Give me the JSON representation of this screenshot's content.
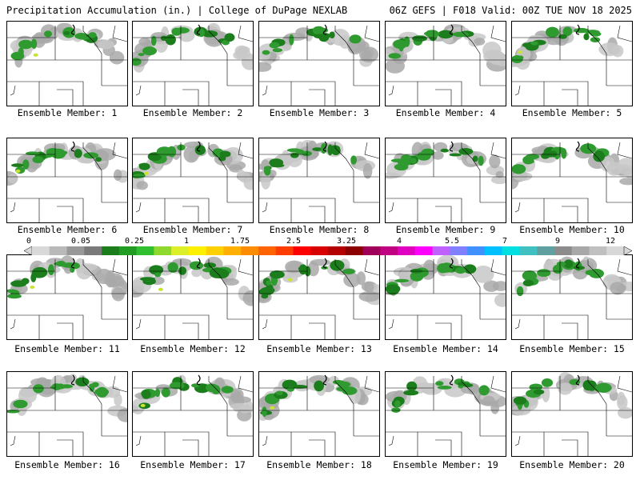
{
  "header": {
    "left": "Precipitation Accumulation (in.) | College of DuPage NEXLAB",
    "right": "06Z GEFS | F018 Valid: 00Z TUE NOV 18 2025"
  },
  "colorbar": {
    "ticks": [
      "0",
      "0.05",
      "0.25",
      "1",
      "1.75",
      "2.5",
      "3.25",
      "4",
      "5.5",
      "7",
      "9",
      "12"
    ],
    "colors": [
      "#d9d9d9",
      "#b9b9b9",
      "#989898",
      "#7a7a7a",
      "#1b7d1b",
      "#239c23",
      "#2fbf2f",
      "#8fd82d",
      "#dcef28",
      "#fff000",
      "#ffd000",
      "#ffb000",
      "#ff8c00",
      "#ff6400",
      "#ff3c00",
      "#ff0000",
      "#d80000",
      "#b40000",
      "#8c0000",
      "#a0005a",
      "#c00080",
      "#e000c0",
      "#ff00ff",
      "#c060ff",
      "#8080ff",
      "#4090ff",
      "#00c0ff",
      "#00e0e0",
      "#40c0c0",
      "#60a0a0",
      "#8c8c8c",
      "#a8a8a8",
      "#c0c0c0",
      "#d8d8d8"
    ]
  },
  "panels": [
    {
      "label": "Ensemble Member: 1"
    },
    {
      "label": "Ensemble Member: 2"
    },
    {
      "label": "Ensemble Member: 3"
    },
    {
      "label": "Ensemble Member: 4"
    },
    {
      "label": "Ensemble Member: 5"
    },
    {
      "label": "Ensemble Member: 6"
    },
    {
      "label": "Ensemble Member: 7"
    },
    {
      "label": "Ensemble Member: 8"
    },
    {
      "label": "Ensemble Member: 9"
    },
    {
      "label": "Ensemble Member: 10"
    },
    {
      "label": "Ensemble Member: 11"
    },
    {
      "label": "Ensemble Member: 12"
    },
    {
      "label": "Ensemble Member: 13"
    },
    {
      "label": "Ensemble Member: 14"
    },
    {
      "label": "Ensemble Member: 15"
    },
    {
      "label": "Ensemble Member: 16"
    },
    {
      "label": "Ensemble Member: 17"
    },
    {
      "label": "Ensemble Member: 18"
    },
    {
      "label": "Ensemble Member: 19"
    },
    {
      "label": "Ensemble Member: 20"
    }
  ]
}
